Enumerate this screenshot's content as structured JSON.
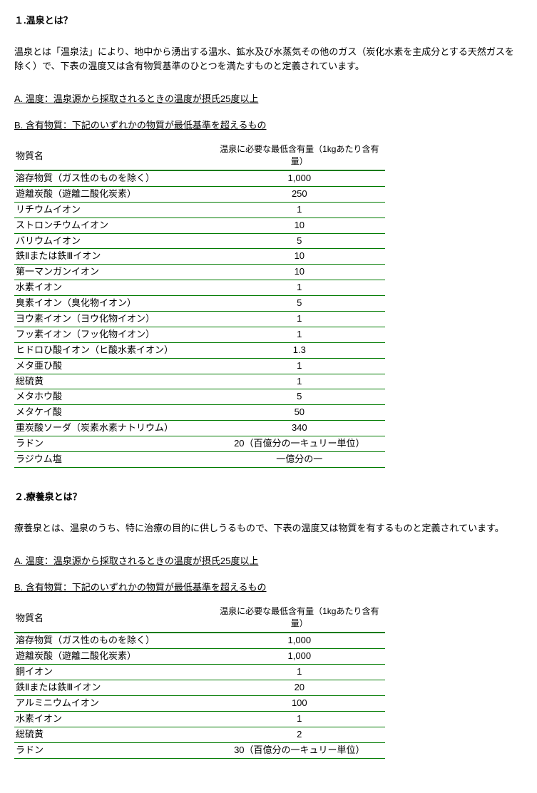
{
  "section1": {
    "heading": "１.温泉とは？",
    "para": "温泉とは「温泉法」により、地中から湧出する温水、鉱水及び水蒸気その他のガス（炭化水素を主成分とする天然ガスを除く）で、下表の温度又は含有物質基準のひとつを満たすものと定義されています。",
    "subA": "A. 温度：温泉源から採取されるときの温度が摂氏25度以上",
    "subB": "B. 含有物質：下記のいずれかの物質が最低基準を超えるもの",
    "th_name": "物質名",
    "th_val": "温泉に必要な最低含有量（1kgあたり含有量）",
    "rows": [
      {
        "name": "溶存物質（ガス性のものを除く）",
        "val": "1,000"
      },
      {
        "name": "遊離炭酸（遊離二酸化炭素）",
        "val": "250"
      },
      {
        "name": "リチウムイオン",
        "val": "1"
      },
      {
        "name": "ストロンチウムイオン",
        "val": "10"
      },
      {
        "name": "バリウムイオン",
        "val": "5"
      },
      {
        "name": "鉄Ⅱまたは鉄Ⅲイオン",
        "val": "10"
      },
      {
        "name": "第一マンガンイオン",
        "val": "10"
      },
      {
        "name": "水素イオン",
        "val": "1"
      },
      {
        "name": "臭素イオン（臭化物イオン）",
        "val": "5"
      },
      {
        "name": "ヨウ素イオン（ヨウ化物イオン）",
        "val": "1"
      },
      {
        "name": "フッ素イオン（フッ化物イオン）",
        "val": "1"
      },
      {
        "name": "ヒドロひ酸イオン（ヒ酸水素イオン）",
        "val": "1.3"
      },
      {
        "name": "メタ亜ひ酸",
        "val": "1"
      },
      {
        "name": "総硫黄",
        "val": "1"
      },
      {
        "name": "メタホウ酸",
        "val": "5"
      },
      {
        "name": "メタケイ酸",
        "val": "50"
      },
      {
        "name": "重炭酸ソーダ（炭素水素ナトリウム）",
        "val": "340"
      },
      {
        "name": "ラドン",
        "val": "20（百億分の一キュリー単位）"
      },
      {
        "name": "ラジウム塩",
        "val": "一億分の一"
      }
    ]
  },
  "section2": {
    "heading": "２.療養泉とは？",
    "para": "療養泉とは、温泉のうち、特に治療の目的に供しうるもので、下表の温度又は物質を有するものと定義されています。",
    "subA": "A. 温度：温泉源から採取されるときの温度が摂氏25度以上",
    "subB": "B. 含有物質：下記のいずれかの物質が最低基準を超えるもの",
    "th_name": "物質名",
    "th_val": "温泉に必要な最低含有量（1kgあたり含有量）",
    "rows": [
      {
        "name": "溶存物質（ガス性のものを除く）",
        "val": "1,000"
      },
      {
        "name": "遊離炭酸（遊離二酸化炭素）",
        "val": "1,000"
      },
      {
        "name": "銅イオン",
        "val": "1"
      },
      {
        "name": "鉄Ⅱまたは鉄Ⅲイオン",
        "val": "20"
      },
      {
        "name": "アルミニウムイオン",
        "val": "100"
      },
      {
        "name": "水素イオン",
        "val": "1"
      },
      {
        "name": "総硫黄",
        "val": "2"
      },
      {
        "name": "ラドン",
        "val": "30（百億分の一キュリー単位）"
      }
    ]
  },
  "colors": {
    "rule": "#007b00",
    "text": "#000000",
    "bg": "#ffffff"
  }
}
